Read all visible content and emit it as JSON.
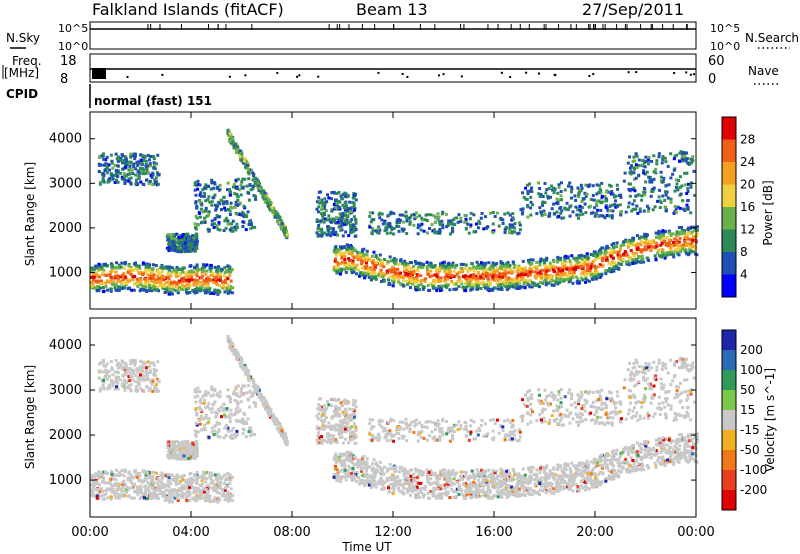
{
  "header": {
    "site": "Falkland Islands (fitACF)",
    "beam": "Beam 13",
    "date": "27/Sep/2011"
  },
  "top_panels": {
    "nsky_label": "N.Sky",
    "nsky_ticks": [
      "10^5",
      "10^0"
    ],
    "nsearch_label": "N.Search",
    "freq_label_1": "Freq.",
    "freq_label_2": "[MHz]",
    "freq_ticks": [
      "18",
      "8"
    ],
    "nave_label": "Nave",
    "nave_ticks": [
      "60",
      "0"
    ],
    "cpid_label": "CPID",
    "cpid_value": "normal (fast) 151"
  },
  "x_axis": {
    "label": "Time UT",
    "ticks": [
      "00:00",
      "04:00",
      "08:00",
      "12:00",
      "16:00",
      "20:00",
      "00:00"
    ]
  },
  "chart_data": [
    {
      "type": "heatmap",
      "title": "",
      "ylabel": "Slant Range [km]",
      "xlabel": "Time UT",
      "xlim": [
        0,
        24
      ],
      "ylim": [
        180,
        4600
      ],
      "y_ticks": [
        1000,
        2000,
        3000,
        4000
      ],
      "colorbar": {
        "label": "Power [dB]",
        "ticks": [
          "4",
          "8",
          "12",
          "16",
          "20",
          "24",
          "28"
        ],
        "colors": [
          "#0000ff",
          "#1f4fb0",
          "#2d8a58",
          "#6bb04a",
          "#f0d040",
          "#f5a020",
          "#f06018",
          "#e00000"
        ]
      },
      "series": [
        {
          "x": [
            0.2,
            1.0,
            1.8,
            2.6,
            3.4,
            4.4,
            5.2,
            10.2,
            11.0,
            12.0,
            13.0,
            14.0,
            15.0,
            16.0,
            17.0,
            18.0,
            19.0,
            19.8,
            20.5,
            21.5,
            22.5,
            23.5
          ],
          "y": [
            850,
            900,
            900,
            850,
            800,
            850,
            800,
            1300,
            1150,
            1000,
            900,
            900,
            900,
            900,
            950,
            1000,
            1050,
            1100,
            1300,
            1500,
            1600,
            1700
          ]
        }
      ]
    },
    {
      "type": "heatmap",
      "title": "",
      "ylabel": "Slant Range [km]",
      "xlabel": "Time UT",
      "xlim": [
        0,
        24
      ],
      "ylim": [
        180,
        4600
      ],
      "y_ticks": [
        1000,
        2000,
        3000,
        4000
      ],
      "colorbar": {
        "label": "Velocity [m s^-1]",
        "ticks": [
          "200",
          "100",
          "50",
          "15",
          "-15",
          "-50",
          "-100",
          "-200"
        ],
        "colors": [
          "#1c28a8",
          "#2a6ab8",
          "#2f9a5a",
          "#7cc84a",
          "#c8c8c8",
          "#f0b020",
          "#f07818",
          "#e84020",
          "#e00000"
        ]
      }
    }
  ]
}
